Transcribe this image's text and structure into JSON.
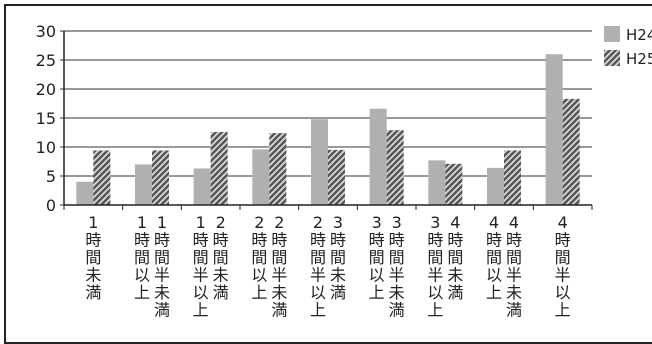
{
  "chart_data": {
    "type": "bar",
    "title": "",
    "xlabel": "",
    "ylabel": "",
    "ylim": [
      0,
      30
    ],
    "yticks": [
      0,
      5,
      10,
      15,
      20,
      25,
      30
    ],
    "grid": "horizontal",
    "legend_position": "right",
    "categories": [
      "1時間未満",
      "1時間半未満",
      "2時間未満",
      "2時間半未満",
      "3時間未満",
      "3時間半未満",
      "4時間未満",
      "4時間半未満",
      "4時間半以上"
    ],
    "category_labels": [
      [
        "1時間未満"
      ],
      [
        "1時間半未満",
        "1時間以上"
      ],
      [
        "2時間未満",
        "1時間半以上"
      ],
      [
        "2時間半未満",
        "2時間以上"
      ],
      [
        "3時間未満",
        "2時間半以上"
      ],
      [
        "3時間半未満",
        "3時間以上"
      ],
      [
        "4時間未満",
        "3時間半以上"
      ],
      [
        "4時間半未満",
        "4時間以上"
      ],
      [
        "4時間半以上"
      ]
    ],
    "series": [
      {
        "name": "H24",
        "color": "#b0b0b0",
        "pattern": "solid",
        "values": [
          4.0,
          7.0,
          6.3,
          9.6,
          14.8,
          16.6,
          7.7,
          6.4,
          26.0
        ]
      },
      {
        "name": "H25",
        "color": "#6a6a6a",
        "pattern": "diagonal-hatch",
        "values": [
          9.4,
          9.4,
          12.6,
          12.4,
          9.5,
          12.9,
          7.1,
          9.4,
          18.3
        ]
      }
    ]
  }
}
